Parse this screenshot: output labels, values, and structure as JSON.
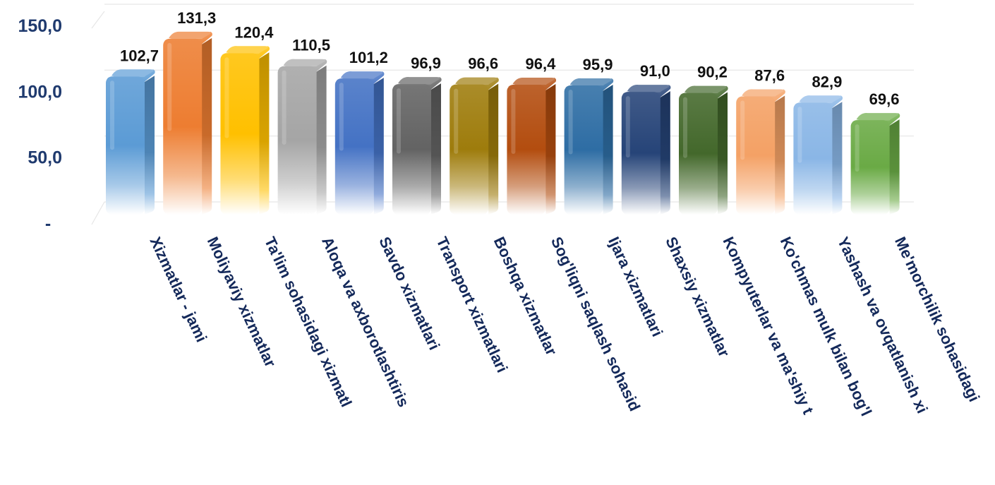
{
  "chart_data": {
    "type": "bar",
    "title": "",
    "xlabel": "",
    "ylabel": "",
    "ylim": [
      0,
      150
    ],
    "grid": true,
    "legend": "none",
    "yticks": [
      {
        "value": 0,
        "label": "-"
      },
      {
        "value": 50,
        "label": "50,0"
      },
      {
        "value": 100,
        "label": "100,0"
      },
      {
        "value": 150,
        "label": "150,0"
      }
    ],
    "categories": [
      "Xizmatlar - jami",
      "Moliyaviy xizmatlar",
      "Ta'lim sohasidagi xizmatl",
      "Aloqa va axborotlashtiris",
      "Savdo xizmatlari",
      "Transport xizmatlari",
      "Boshqa xizmatlar",
      "Sog'liqni saqlash sohasid",
      "Ijara xizmatlari",
      "Shaxsiy xizmatlar",
      "Kompyuterlar va ma'shiy t",
      "Ko'chmas mulk bilan bog'l",
      "Yashash va ovqatlanish xi",
      "Me'morchilik  sohasidagi"
    ],
    "values": [
      102.7,
      131.3,
      120.4,
      110.5,
      101.2,
      96.9,
      96.6,
      96.4,
      95.9,
      91.0,
      90.2,
      87.6,
      82.9,
      69.6
    ],
    "value_labels": [
      "102,7",
      "131,3",
      "120,4",
      "110,5",
      "101,2",
      "96,9",
      "96,6",
      "96,4",
      "95,9",
      "91,0",
      "90,2",
      "87,6",
      "82,9",
      "69,6"
    ],
    "colors": [
      "#5b9bd5",
      "#ed7d31",
      "#ffc000",
      "#a5a5a5",
      "#4472c4",
      "#636363",
      "#9e7c0c",
      "#b34d0f",
      "#2e6da4",
      "#264478",
      "#43682b",
      "#f4a165",
      "#8ab6e6",
      "#6aaa45"
    ]
  }
}
